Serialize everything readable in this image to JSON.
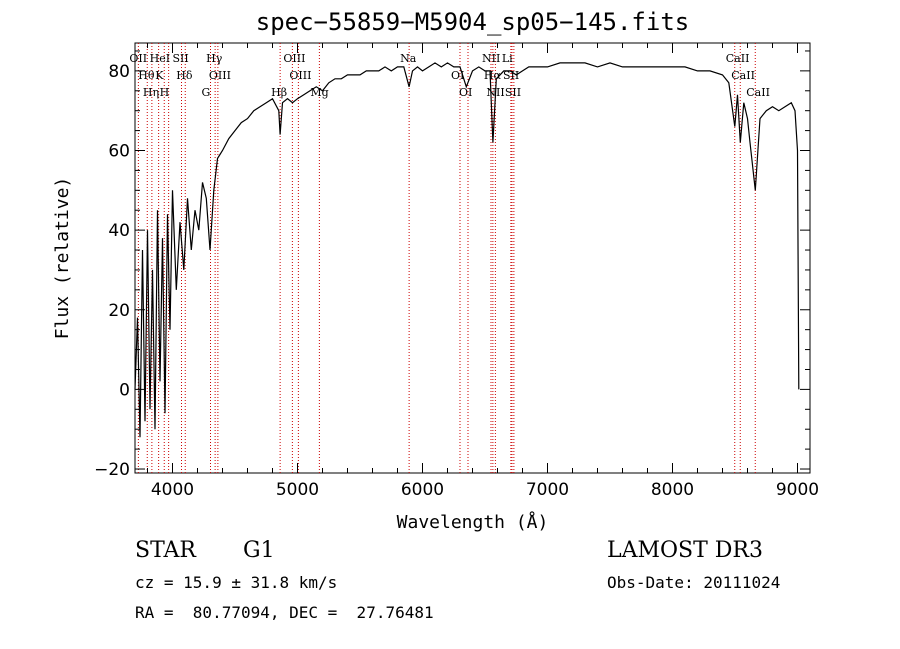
{
  "chart_data": {
    "type": "line",
    "title": "spec−55859−M5904_sp05−145.fits",
    "xlabel": "Wavelength (Å)",
    "ylabel": "Flux (relative)",
    "xlim": [
      3700,
      9100
    ],
    "ylim": [
      -21,
      87
    ],
    "x_ticks": [
      4000,
      5000,
      6000,
      7000,
      8000,
      9000
    ],
    "x_tick_labels": [
      "4000",
      "5000",
      "6000",
      "7000",
      "8000",
      "9000"
    ],
    "y_ticks": [
      -20,
      0,
      20,
      40,
      60,
      80
    ],
    "y_tick_labels": [
      "−20",
      "0",
      "20",
      "40",
      "60",
      "80"
    ],
    "grid": false,
    "series": [
      {
        "name": "flux",
        "x": [
          3700,
          3720,
          3740,
          3760,
          3780,
          3800,
          3820,
          3840,
          3860,
          3880,
          3900,
          3920,
          3940,
          3960,
          3980,
          4000,
          4030,
          4060,
          4090,
          4120,
          4150,
          4180,
          4210,
          4240,
          4270,
          4300,
          4330,
          4360,
          4400,
          4450,
          4500,
          4550,
          4600,
          4650,
          4700,
          4750,
          4800,
          4850,
          4861,
          4880,
          4920,
          4960,
          5000,
          5050,
          5100,
          5150,
          5200,
          5250,
          5300,
          5350,
          5400,
          5450,
          5500,
          5550,
          5600,
          5650,
          5700,
          5750,
          5800,
          5850,
          5893,
          5920,
          5960,
          6000,
          6050,
          6100,
          6150,
          6200,
          6250,
          6300,
          6350,
          6400,
          6450,
          6500,
          6540,
          6563,
          6590,
          6620,
          6650,
          6700,
          6750,
          6800,
          6850,
          6900,
          6950,
          7000,
          7100,
          7200,
          7300,
          7400,
          7500,
          7600,
          7700,
          7800,
          7900,
          8000,
          8100,
          8200,
          8300,
          8400,
          8450,
          8498,
          8520,
          8542,
          8570,
          8600,
          8620,
          8662,
          8700,
          8750,
          8800,
          8850,
          8900,
          8950,
          8980,
          9000,
          9010
        ],
        "y": [
          0,
          18,
          -12,
          35,
          -8,
          40,
          -5,
          30,
          -10,
          45,
          2,
          38,
          -6,
          44,
          15,
          50,
          25,
          42,
          30,
          48,
          35,
          45,
          40,
          52,
          48,
          35,
          50,
          58,
          60,
          63,
          65,
          67,
          68,
          70,
          71,
          72,
          73,
          70,
          64,
          72,
          73,
          72,
          73,
          74,
          75,
          76,
          75,
          77,
          78,
          78,
          79,
          79,
          79,
          80,
          80,
          80,
          81,
          80,
          81,
          81,
          76,
          80,
          81,
          80,
          81,
          82,
          81,
          82,
          81,
          81,
          76,
          80,
          81,
          80,
          80,
          62,
          78,
          79,
          80,
          80,
          79,
          80,
          81,
          81,
          81,
          81,
          82,
          82,
          82,
          81,
          82,
          81,
          81,
          81,
          81,
          81,
          81,
          80,
          80,
          79,
          77,
          66,
          74,
          62,
          72,
          68,
          62,
          50,
          68,
          70,
          71,
          70,
          71,
          72,
          70,
          60,
          0
        ]
      }
    ],
    "lines": [
      {
        "label": "OII",
        "x": 3727
      },
      {
        "label": "Hθ",
        "x": 3798
      },
      {
        "label": "Hη",
        "x": 3835
      },
      {
        "label": "HeI",
        "x": 3889
      },
      {
        "label": "K",
        "x": 3934
      },
      {
        "label": "H",
        "x": 3969
      },
      {
        "label": "SII",
        "x": 4072
      },
      {
        "label": "Hδ",
        "x": 4102
      },
      {
        "label": "G",
        "x": 4304
      },
      {
        "label": "Hγ",
        "x": 4341
      },
      {
        "label": "OIII",
        "x": 4363
      },
      {
        "label": "Hβ",
        "x": 4861
      },
      {
        "label": "OIII",
        "x": 4959
      },
      {
        "label": "OIII",
        "x": 5007
      },
      {
        "label": "Mg",
        "x": 5175
      },
      {
        "label": "Na",
        "x": 5893
      },
      {
        "label": "OI",
        "x": 6300
      },
      {
        "label": "OI",
        "x": 6364
      },
      {
        "label": "NII",
        "x": 6548
      },
      {
        "label": "Hα",
        "x": 6563
      },
      {
        "label": "NII",
        "x": 6583
      },
      {
        "label": "Li",
        "x": 6707
      },
      {
        "label": "SII",
        "x": 6716
      },
      {
        "label": "SII",
        "x": 6731
      },
      {
        "label": "CaII",
        "x": 8498
      },
      {
        "label": "CaII",
        "x": 8542
      },
      {
        "label": "CaII",
        "x": 8662
      }
    ]
  },
  "info": {
    "class": "STAR",
    "subclass": "G1",
    "survey": "LAMOST DR3",
    "cz": "cz = 15.9 ± 31.8 km/s",
    "obs_date": "Obs-Date: 20111024",
    "radec": "RA =  80.77094, DEC =  27.76481"
  },
  "colors": {
    "line": "#000000",
    "marker": "#cc0000"
  }
}
